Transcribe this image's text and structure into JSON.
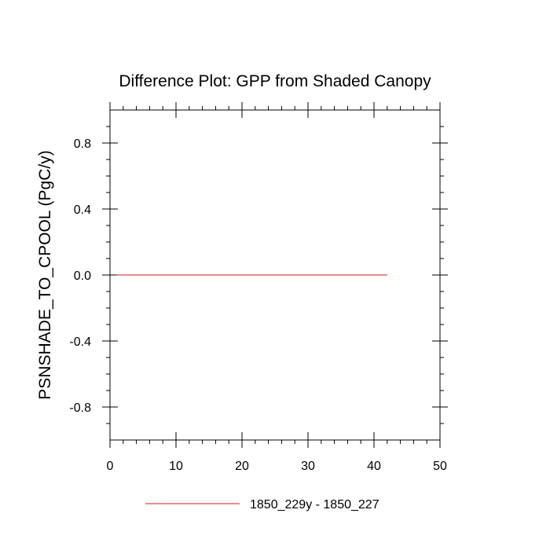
{
  "chart_data": {
    "type": "line",
    "title": "Difference Plot: GPP from Shaded Canopy",
    "xlabel": "",
    "ylabel": "PSNSHADE_TO_CPOOL  (PgC/y)",
    "xlim": [
      0,
      50
    ],
    "ylim": [
      -1.0,
      1.0
    ],
    "x_ticks": [
      0,
      10,
      20,
      30,
      40,
      50
    ],
    "x_tick_labels": [
      "0",
      "10",
      "20",
      "30",
      "40",
      "50"
    ],
    "y_ticks": [
      -0.8,
      -0.4,
      0.0,
      0.4,
      0.8
    ],
    "y_tick_labels": [
      "-0.8",
      "-0.4",
      "0.0",
      "0.4",
      "0.8"
    ],
    "grid": false,
    "legend_position": "bottom",
    "series": [
      {
        "name": "1850_229y - 1850_227",
        "color": "#e06666",
        "x": [
          1,
          42
        ],
        "y": [
          0.0,
          0.0
        ]
      }
    ]
  }
}
